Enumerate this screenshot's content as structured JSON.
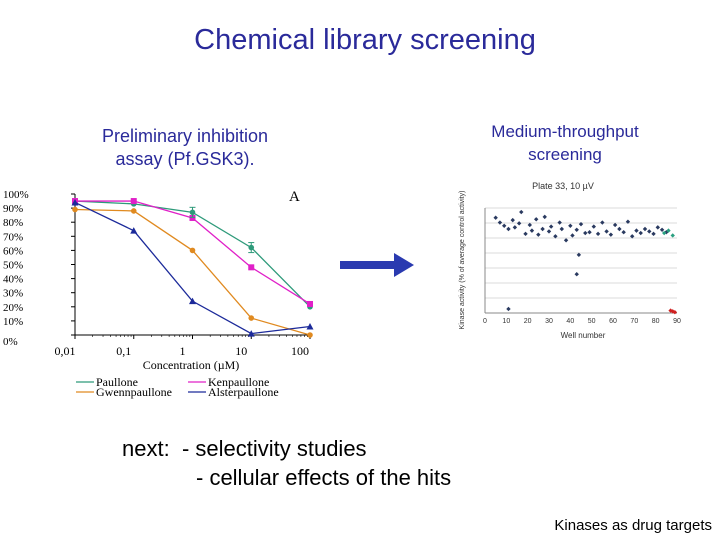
{
  "slide": {
    "title": "Chemical library screening",
    "left_heading_line1": "Preliminary inhibition",
    "left_heading_line2": "assay (Pf.GSK3).",
    "right_heading_line1": "Medium-throughput",
    "right_heading_line2": "screening",
    "next_label": "next:",
    "next_item1": "- selectivity studies",
    "next_item2": "- cellular effects of the hits",
    "footer": "Kinases as drug targets"
  },
  "chart_data": [
    {
      "type": "line",
      "panel_letter": "A",
      "xlabel": "Concentration (µM)",
      "x_scale": "log",
      "x_ticks": [
        "0,01",
        "0,1",
        "1",
        "10",
        "100"
      ],
      "y_ticks": [
        "100%",
        "90%",
        "80%",
        "70%",
        "60%",
        "50%",
        "40%",
        "30%",
        "20%",
        "10%",
        "0%"
      ],
      "ylim": [
        0,
        100
      ],
      "series": [
        {
          "name": "Paullone",
          "color": "#2e9a7a",
          "marker": "circle",
          "x": [
            0.01,
            0.1,
            1,
            10,
            100
          ],
          "y": [
            95,
            93,
            87,
            62,
            20
          ]
        },
        {
          "name": "Kenpaullone",
          "color": "#e020c8",
          "marker": "square",
          "x": [
            0.01,
            0.1,
            1,
            10,
            100
          ],
          "y": [
            95,
            95,
            83,
            48,
            22
          ]
        },
        {
          "name": "Gwennpaullone",
          "color": "#e08a20",
          "marker": "circle",
          "x": [
            0.01,
            0.1,
            1,
            10,
            100
          ],
          "y": [
            89,
            88,
            60,
            12,
            0
          ]
        },
        {
          "name": "Alsterpaullone",
          "color": "#1c2a9a",
          "marker": "triangle",
          "x": [
            0.01,
            0.1,
            1,
            10,
            100
          ],
          "y": [
            94,
            74,
            24,
            1,
            6
          ]
        }
      ]
    },
    {
      "type": "scatter",
      "title": "Plate 33, 10 µV",
      "xlabel": "Well number",
      "ylabel": "Kinase activity (% of average control activity)",
      "x_ticks": [
        "0",
        "10",
        "20",
        "30",
        "40",
        "50",
        "60",
        "70",
        "80",
        "90"
      ],
      "xlim": [
        0,
        90
      ],
      "highlight_color": "#d02020",
      "series": [
        {
          "name": "",
          "color": "#2a3a60",
          "x": [
            5,
            7,
            9,
            11,
            13,
            14,
            16,
            17,
            19,
            21,
            22,
            24,
            25,
            27,
            28,
            30,
            31,
            33,
            35,
            36,
            38,
            40,
            41,
            43,
            45,
            47,
            49,
            51,
            53,
            55,
            57,
            59,
            61,
            63,
            65,
            67,
            69,
            71,
            73,
            75,
            77,
            79,
            81,
            83,
            85
          ],
          "y": [
            118,
            112,
            108,
            104,
            115,
            106,
            111,
            125,
            98,
            109,
            102,
            116,
            97,
            104,
            119,
            101,
            107,
            95,
            112,
            104,
            90,
            108,
            96,
            103,
            110,
            99,
            100,
            107,
            98,
            112,
            101,
            97,
            109,
            104,
            100,
            113,
            95,
            102,
            99,
            104,
            101,
            98,
            106,
            103,
            100
          ]
        },
        {
          "name": "",
          "color": "#2aa080",
          "x": [
            84,
            86,
            88
          ],
          "y": [
            99,
            102,
            96
          ]
        },
        {
          "name": "",
          "color": "#2a3a60",
          "x": [
            11,
            43,
            44
          ],
          "y": [
            5,
            48,
            72
          ]
        },
        {
          "name": "",
          "color": "#d02020",
          "x": [
            87,
            88,
            89
          ],
          "y": [
            3,
            2,
            1
          ]
        }
      ]
    }
  ]
}
